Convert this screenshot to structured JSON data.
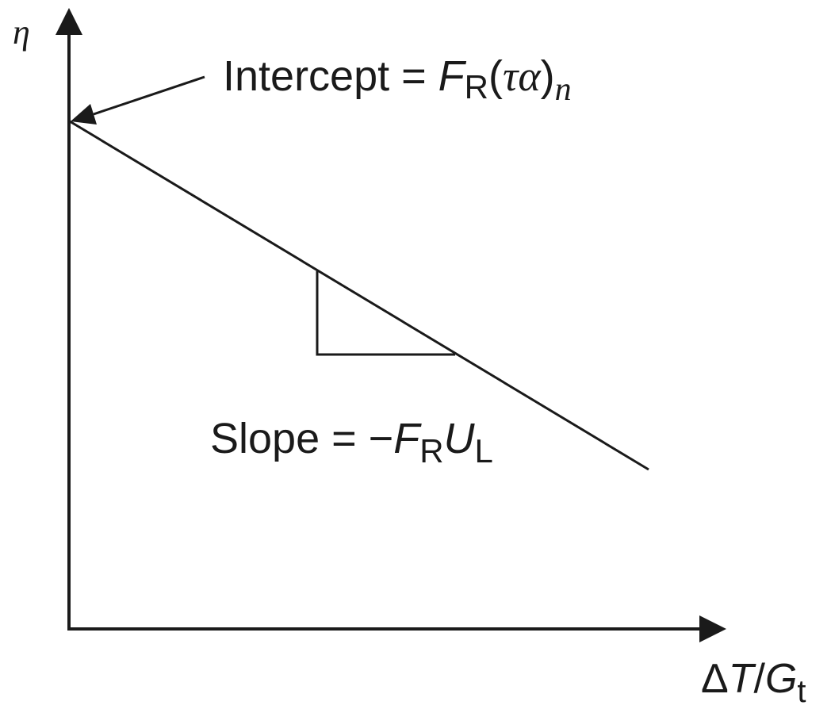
{
  "diagram": {
    "y_axis_label": "η",
    "x_axis_label": {
      "delta": "Δ",
      "T": "T",
      "slash": "/",
      "G": "G",
      "t": "t"
    },
    "intercept_label": {
      "prefix": "Intercept = ",
      "F": "F",
      "R": "R",
      "paren_open": "(",
      "tau_alpha": "τα",
      "paren_close": ")",
      "n": "n"
    },
    "slope_label": {
      "prefix": "Slope = −",
      "F": "F",
      "R": "R",
      "U": "U",
      "L": "L"
    },
    "stroke_color": "#1a1a1a"
  }
}
